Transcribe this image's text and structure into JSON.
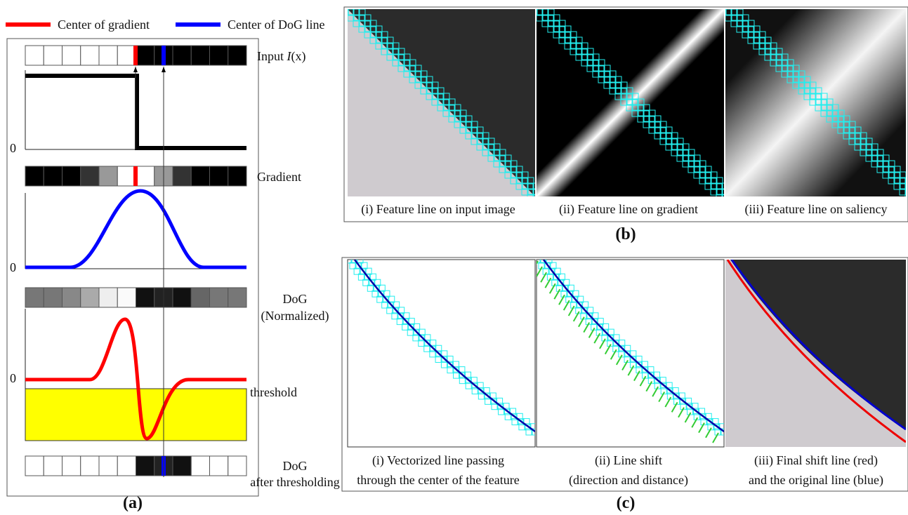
{
  "legend": [
    "Center of gradient",
    "Center of DoG line"
  ],
  "panel_a": {
    "input_label": {
      "prefix": "Input",
      "symbol": "I",
      "suffix": "(x)"
    },
    "zero_labels": [
      "0",
      "0",
      "0"
    ],
    "gradient_label": "Gradient",
    "dog_label": [
      "DoG",
      "(Normalized)"
    ],
    "threshold_label": "threshold",
    "thresholded_label": [
      "DoG",
      "after thresholding"
    ],
    "caption": "(a)"
  },
  "panel_b": {
    "captions": [
      "(i) Feature line on input image",
      "(ii) Feature line on gradient",
      "(iii) Feature line on saliency"
    ],
    "caption": "(b)"
  },
  "panel_c": {
    "captions": [
      [
        "(i) Vectorized line passing",
        "through the center of the feature"
      ],
      [
        "(ii) Line shift",
        "(direction and distance)"
      ],
      [
        "(iii) Final shift line (red)",
        "and the original line (blue)"
      ]
    ],
    "caption": "(c)"
  }
}
